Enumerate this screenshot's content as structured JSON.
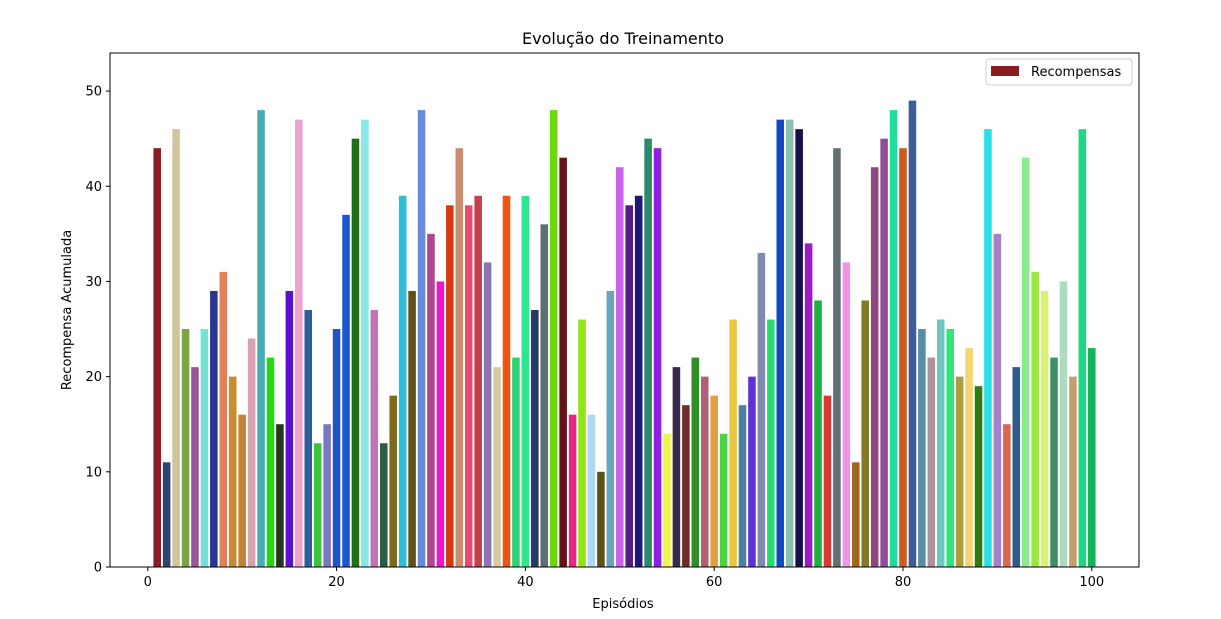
{
  "chart_data": {
    "type": "bar",
    "title": "Evolução do Treinamento",
    "xlabel": "Episódios",
    "ylabel": "Recompensa Acumulada",
    "xlim": [
      -4,
      105
    ],
    "ylim": [
      0,
      54
    ],
    "xticks": [
      0,
      20,
      40,
      60,
      80,
      100
    ],
    "yticks": [
      0,
      10,
      20,
      30,
      40,
      50
    ],
    "legend": {
      "label": "Recompensas",
      "color": "#8b1a22",
      "placement": "upper-right"
    },
    "grid": false,
    "x": [
      1,
      2,
      3,
      4,
      5,
      6,
      7,
      8,
      9,
      10,
      11,
      12,
      13,
      14,
      15,
      16,
      17,
      18,
      19,
      20,
      21,
      22,
      23,
      24,
      25,
      26,
      27,
      28,
      29,
      30,
      31,
      32,
      33,
      34,
      35,
      36,
      37,
      38,
      39,
      40,
      41,
      42,
      43,
      44,
      45,
      46,
      47,
      48,
      49,
      50,
      51,
      52,
      53,
      54,
      55,
      56,
      57,
      58,
      59,
      60,
      61,
      62,
      63,
      64,
      65,
      66,
      67,
      68,
      69,
      70,
      71,
      72,
      73,
      74,
      75,
      76,
      77,
      78,
      79,
      80,
      81,
      82,
      83,
      84,
      85,
      86,
      87,
      88,
      89,
      90,
      91,
      92,
      93,
      94,
      95,
      96,
      97,
      98,
      99,
      100
    ],
    "values": [
      44,
      11,
      46,
      25,
      21,
      25,
      29,
      31,
      20,
      16,
      24,
      48,
      22,
      15,
      29,
      47,
      27,
      13,
      15,
      25,
      37,
      45,
      47,
      27,
      13,
      18,
      39,
      29,
      48,
      35,
      30,
      38,
      44,
      38,
      39,
      32,
      21,
      39,
      22,
      39,
      27,
      36,
      48,
      43,
      16,
      26,
      16,
      10,
      29,
      42,
      38,
      39,
      45,
      44,
      14,
      21,
      17,
      22,
      20,
      18,
      14,
      26,
      17,
      20,
      33,
      26,
      47,
      47,
      46,
      34,
      28,
      18,
      44,
      32,
      11,
      28,
      42,
      45,
      48,
      44,
      49,
      25,
      22,
      26,
      25,
      20,
      23,
      19,
      46,
      35,
      15,
      21,
      43,
      31,
      29,
      22,
      30,
      20,
      46,
      23
    ],
    "colors": [
      "#8b1a22",
      "#2c4470",
      "#d3c59b",
      "#7ca646",
      "#9b5598",
      "#73e2d5",
      "#283892",
      "#e37f59",
      "#c98a30",
      "#c88131",
      "#d7a1af",
      "#46acb6",
      "#26d610",
      "#23371b",
      "#5b10d1",
      "#f0a0d2",
      "#2e5f9c",
      "#3dc240",
      "#7a76c1",
      "#1f54c4",
      "#1a58d1",
      "#1f7117",
      "#86e8e8",
      "#c273b7",
      "#2c5c44",
      "#7d6a1c",
      "#2abed9",
      "#5f5117",
      "#678ad9",
      "#b1468f",
      "#ef14c6",
      "#d73a10",
      "#c98c6f",
      "#e64c6f",
      "#c4414a",
      "#8a74b1",
      "#d5cca0",
      "#f1540f",
      "#2cd471",
      "#2ce78c",
      "#263b61",
      "#5d6f70",
      "#6dd810",
      "#621318",
      "#e72786",
      "#92e514",
      "#b0d8f3",
      "#5b5119",
      "#69a4be",
      "#cc63ef",
      "#521b86",
      "#1b1779",
      "#2a8a6b",
      "#8e20e1",
      "#eef54c",
      "#3a2a4b",
      "#6e2c2a",
      "#2d8f25",
      "#b05f74",
      "#e39e3f",
      "#4ad441",
      "#e9c740",
      "#4e80a2",
      "#5f31d8",
      "#8089ae",
      "#26dc72",
      "#134ac4",
      "#8cbfb2",
      "#170f4d",
      "#9d1bc4",
      "#1cb33c",
      "#d73a2f",
      "#626f74",
      "#f094e8",
      "#a0661b",
      "#837a27",
      "#8e477e",
      "#934c99",
      "#20dc9d",
      "#c95d1c",
      "#3b5d9b",
      "#588da6",
      "#ad9198",
      "#6fc7c2",
      "#31e678",
      "#ab9d3a",
      "#f4d473",
      "#2f7d10",
      "#27e1e8",
      "#a481c9",
      "#dd6751",
      "#2c5c8c",
      "#8be98e",
      "#98e83f",
      "#d8f272",
      "#3d8f66",
      "#addbbf",
      "#c59e6b",
      "#1ad884",
      "#11b556"
    ]
  }
}
